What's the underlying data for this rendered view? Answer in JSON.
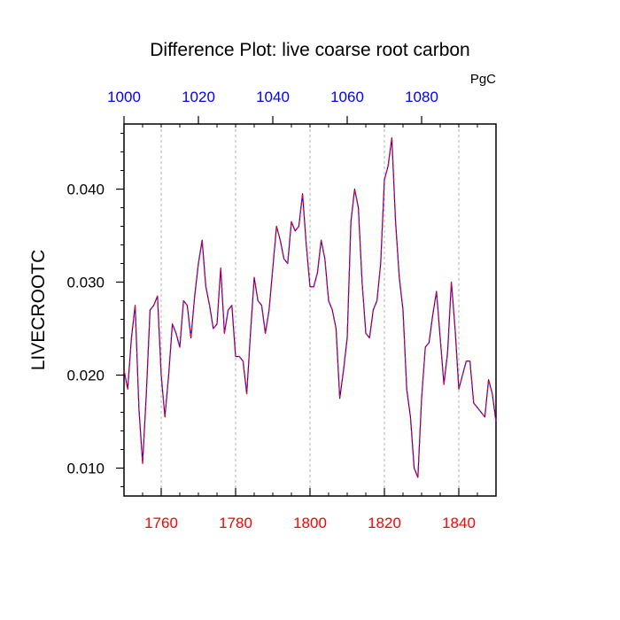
{
  "chart_data": {
    "type": "line",
    "title": "Difference Plot: live coarse root carbon",
    "units": "PgC",
    "ylabel": "LIVECROOTC",
    "xlim": [
      1750,
      1850
    ],
    "ylim": [
      0.007,
      0.047
    ],
    "x_ticks": [
      1760,
      1780,
      1800,
      1820,
      1840
    ],
    "x_tick_labels": [
      "1760",
      "1780",
      "1800",
      "1820",
      "1840"
    ],
    "x2_ticks": [
      1000,
      1020,
      1040,
      1060,
      1080
    ],
    "x2_tick_labels": [
      "1000",
      "1020",
      "1040",
      "1060",
      "1080"
    ],
    "x2_offset": -750,
    "y_ticks": [
      0.01,
      0.02,
      0.03,
      0.04
    ],
    "y_tick_labels": [
      "0.010",
      "0.020",
      "0.030",
      "0.040"
    ],
    "grid": "vertical dashed at major x ticks",
    "colors": {
      "line_a": "#0000ff",
      "line_b": "#ff0000",
      "bottom_axis_labels": "#ff0000",
      "top_axis_labels": "#0000ff"
    },
    "series": [
      {
        "x": [
          1750,
          1751,
          1752,
          1753,
          1754,
          1755,
          1756,
          1757,
          1758,
          1759,
          1760,
          1761,
          1762,
          1763,
          1764,
          1765,
          1766,
          1767,
          1768,
          1769,
          1770,
          1771,
          1772,
          1773,
          1774,
          1775,
          1776,
          1777,
          1778,
          1779,
          1780,
          1781,
          1782,
          1783,
          1784,
          1785,
          1786,
          1787,
          1788,
          1789,
          1790,
          1791,
          1792,
          1793,
          1794,
          1795,
          1796,
          1797,
          1798,
          1799,
          1800,
          1801,
          1802,
          1803,
          1804,
          1805,
          1806,
          1807,
          1808,
          1809,
          1810,
          1811,
          1812,
          1813,
          1814,
          1815,
          1816,
          1817,
          1818,
          1819,
          1820,
          1821,
          1822,
          1823,
          1824,
          1825,
          1826,
          1827,
          1828,
          1829,
          1830,
          1831,
          1832,
          1833,
          1834,
          1835,
          1836,
          1837,
          1838,
          1839,
          1840,
          1841,
          1842,
          1843,
          1844,
          1845,
          1846,
          1847,
          1848,
          1849,
          1850
        ],
        "y": [
          0.0205,
          0.0185,
          0.024,
          0.0275,
          0.0165,
          0.0105,
          0.018,
          0.027,
          0.0275,
          0.0285,
          0.02,
          0.0155,
          0.02,
          0.0255,
          0.0245,
          0.023,
          0.028,
          0.0275,
          0.024,
          0.0285,
          0.032,
          0.0345,
          0.0295,
          0.0275,
          0.025,
          0.0255,
          0.0315,
          0.0245,
          0.027,
          0.0275,
          0.022,
          0.022,
          0.0215,
          0.018,
          0.0245,
          0.0305,
          0.028,
          0.0275,
          0.0245,
          0.027,
          0.0315,
          0.036,
          0.0345,
          0.0325,
          0.032,
          0.0365,
          0.0355,
          0.036,
          0.0395,
          0.034,
          0.0295,
          0.0295,
          0.031,
          0.0345,
          0.0325,
          0.028,
          0.027,
          0.025,
          0.0175,
          0.0205,
          0.024,
          0.0365,
          0.04,
          0.038,
          0.03,
          0.0245,
          0.024,
          0.027,
          0.028,
          0.032,
          0.041,
          0.0425,
          0.0455,
          0.0365,
          0.0305,
          0.027,
          0.0185,
          0.0155,
          0.01,
          0.009,
          0.0175,
          0.023,
          0.0235,
          0.0265,
          0.029,
          0.024,
          0.019,
          0.0225,
          0.03,
          0.025,
          0.0185,
          0.02,
          0.0215,
          0.0215,
          0.017,
          0.0165,
          0.016,
          0.0155,
          0.0195,
          0.018,
          0.015
        ]
      }
    ]
  }
}
